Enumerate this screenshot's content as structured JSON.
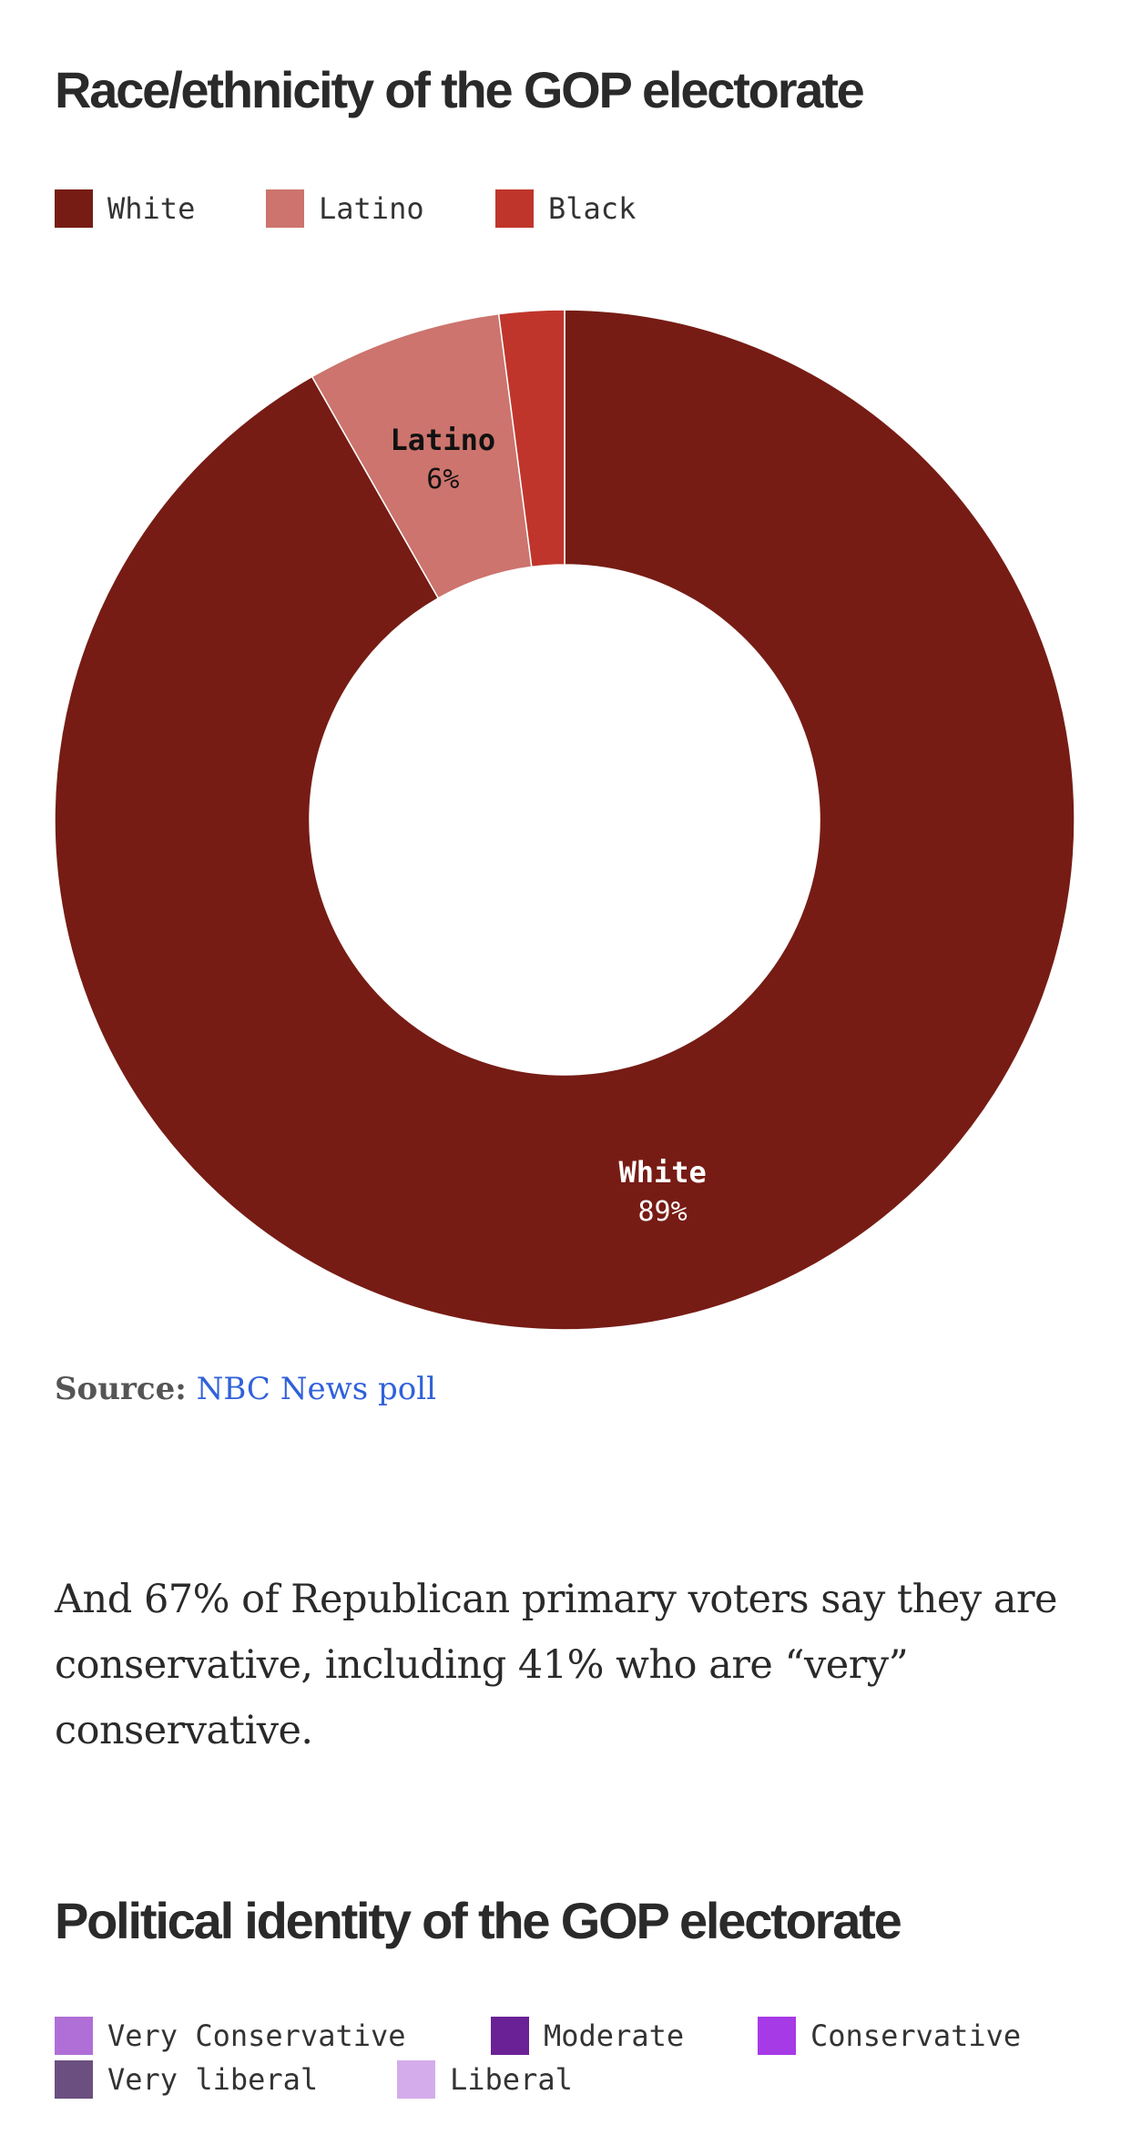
{
  "chart_data": [
    {
      "type": "pie",
      "title": "Race/ethnicity of the GOP electorate",
      "legend": [
        "White",
        "Latino",
        "Black"
      ],
      "slices": [
        {
          "label": "White",
          "value": 89,
          "value_label": "89%",
          "color": "#761c15",
          "show_label": true,
          "label_color": "#ffffff"
        },
        {
          "label": "Latino",
          "value": 6,
          "value_label": "6%",
          "color": "#cc746d",
          "show_label": true,
          "label_color": "#111111"
        },
        {
          "label": "Black",
          "value": 2,
          "value_label": "",
          "color": "#c0352b",
          "show_label": false,
          "label_color": "#111111"
        }
      ],
      "donut": true,
      "legend_placement": "top-left"
    },
    {
      "type": "pie",
      "title": "Political identity of the GOP electorate",
      "legend": [
        "Very Conservative",
        "Moderate",
        "Conservative",
        "Very liberal",
        "Liberal"
      ],
      "legend_colors": [
        "#b06fd6",
        "#6a2196",
        "#a63ae6",
        "#6b4f80",
        "#d4aceb"
      ],
      "legend_placement": "top-left"
    }
  ],
  "source": {
    "label": "Source:",
    "link_text": "NBC News poll"
  },
  "paragraph": "And 67% of Republican primary voters say they are conservative, including 41% who are “very” conservative."
}
